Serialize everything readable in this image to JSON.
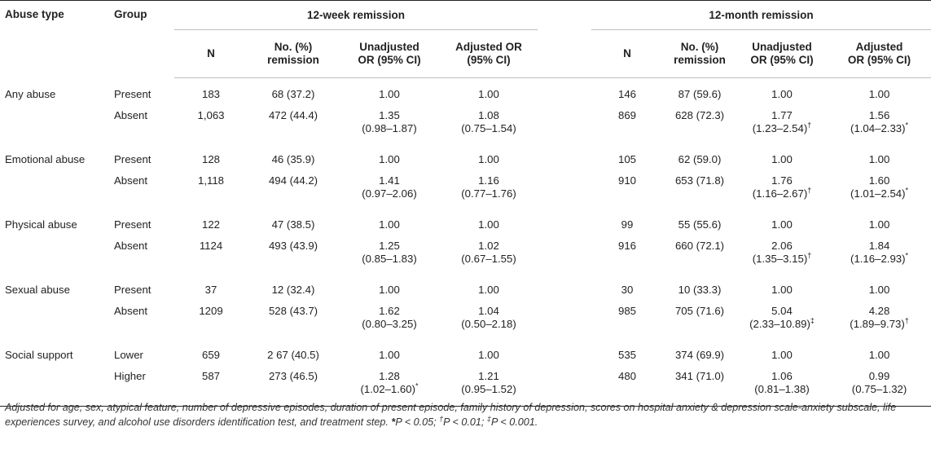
{
  "headers": {
    "abuse_type": "Abuse type",
    "group": "Group",
    "period1": "12-week remission",
    "period2": "12-month remission",
    "n": "N",
    "remission_l1": "No. (%)",
    "remission_l2": "remission",
    "unadj_l1": "Unadjusted",
    "unadj_l2": "OR (95% CI)",
    "adj_l1": "Adjusted OR",
    "adj_l2": "(95% CI)",
    "adj2_l1": "Adjusted",
    "adj2_l2": "OR (95% CI)"
  },
  "rows": [
    {
      "type": "Any abuse",
      "group": "Present",
      "n1": "183",
      "rem1": "68 (37.2)",
      "unadj1": "1.00",
      "unadj1_ci": "",
      "unadj1_sig": "",
      "adj1": "1.00",
      "adj1_ci": "",
      "adj1_sig": "",
      "n2": "146",
      "rem2": "87 (59.6)",
      "unadj2": "1.00",
      "unadj2_ci": "",
      "unadj2_sig": "",
      "adj2": "1.00",
      "adj2_ci": "",
      "adj2_sig": ""
    },
    {
      "type": "",
      "group": "Absent",
      "n1": "1,063",
      "rem1": "472 (44.4)",
      "unadj1": "1.35",
      "unadj1_ci": "(0.98–1.87)",
      "unadj1_sig": "",
      "adj1": "1.08",
      "adj1_ci": "(0.75–1.54)",
      "adj1_sig": "",
      "n2": "869",
      "rem2": "628 (72.3)",
      "unadj2": "1.77",
      "unadj2_ci": "(1.23–2.54)",
      "unadj2_sig": "†",
      "adj2": "1.56",
      "adj2_ci": "(1.04–2.33)",
      "adj2_sig": "*"
    },
    {
      "type": "Emotional abuse",
      "group": "Present",
      "n1": "128",
      "rem1": "46 (35.9)",
      "unadj1": "1.00",
      "unadj1_ci": "",
      "unadj1_sig": "",
      "adj1": "1.00",
      "adj1_ci": "",
      "adj1_sig": "",
      "n2": "105",
      "rem2": "62 (59.0)",
      "unadj2": "1.00",
      "unadj2_ci": "",
      "unadj2_sig": "",
      "adj2": "1.00",
      "adj2_ci": "",
      "adj2_sig": ""
    },
    {
      "type": "",
      "group": "Absent",
      "n1": "1,118",
      "rem1": "494 (44.2)",
      "unadj1": "1.41",
      "unadj1_ci": "(0.97–2.06)",
      "unadj1_sig": "",
      "adj1": "1.16",
      "adj1_ci": "(0.77–1.76)",
      "adj1_sig": "",
      "n2": "910",
      "rem2": "653 (71.8)",
      "unadj2": "1.76",
      "unadj2_ci": "(1.16–2.67)",
      "unadj2_sig": "†",
      "adj2": "1.60",
      "adj2_ci": "(1.01–2.54)",
      "adj2_sig": "*"
    },
    {
      "type": "Physical abuse",
      "group": "Present",
      "n1": "122",
      "rem1": "47 (38.5)",
      "unadj1": "1.00",
      "unadj1_ci": "",
      "unadj1_sig": "",
      "adj1": "1.00",
      "adj1_ci": "",
      "adj1_sig": "",
      "n2": "99",
      "rem2": "55 (55.6)",
      "unadj2": "1.00",
      "unadj2_ci": "",
      "unadj2_sig": "",
      "adj2": "1.00",
      "adj2_ci": "",
      "adj2_sig": ""
    },
    {
      "type": "",
      "group": "Absent",
      "n1": "1124",
      "rem1": "493 (43.9)",
      "unadj1": "1.25",
      "unadj1_ci": "(0.85–1.83)",
      "unadj1_sig": "",
      "adj1": "1.02",
      "adj1_ci": "(0.67–1.55)",
      "adj1_sig": "",
      "n2": "916",
      "rem2": "660 (72.1)",
      "unadj2": "2.06",
      "unadj2_ci": "(1.35–3.15)",
      "unadj2_sig": "†",
      "adj2": "1.84",
      "adj2_ci": "(1.16–2.93)",
      "adj2_sig": "*"
    },
    {
      "type": "Sexual abuse",
      "group": "Present",
      "n1": "37",
      "rem1": "12 (32.4)",
      "unadj1": "1.00",
      "unadj1_ci": "",
      "unadj1_sig": "",
      "adj1": "1.00",
      "adj1_ci": "",
      "adj1_sig": "",
      "n2": "30",
      "rem2": "10 (33.3)",
      "unadj2": "1.00",
      "unadj2_ci": "",
      "unadj2_sig": "",
      "adj2": "1.00",
      "adj2_ci": "",
      "adj2_sig": ""
    },
    {
      "type": "",
      "group": "Absent",
      "n1": "1209",
      "rem1": "528 (43.7)",
      "unadj1": "1.62",
      "unadj1_ci": "(0.80–3.25)",
      "unadj1_sig": "",
      "adj1": "1.04",
      "adj1_ci": "(0.50–2.18)",
      "adj1_sig": "",
      "n2": "985",
      "rem2": "705 (71.6)",
      "unadj2": "5.04",
      "unadj2_ci": "(2.33–10.89)",
      "unadj2_sig": "‡",
      "adj2": "4.28",
      "adj2_ci": "(1.89–9.73)",
      "adj2_sig": "†"
    },
    {
      "type": "Social support",
      "group": "Lower",
      "n1": "659",
      "rem1": "2 67 (40.5)",
      "unadj1": "1.00",
      "unadj1_ci": "",
      "unadj1_sig": "",
      "adj1": "1.00",
      "adj1_ci": "",
      "adj1_sig": "",
      "n2": "535",
      "rem2": "374 (69.9)",
      "unadj2": "1.00",
      "unadj2_ci": "",
      "unadj2_sig": "",
      "adj2": "1.00",
      "adj2_ci": "",
      "adj2_sig": ""
    },
    {
      "type": "",
      "group": "Higher",
      "n1": "587",
      "rem1": "273 (46.5)",
      "unadj1": "1.28",
      "unadj1_ci": "(1.02–1.60)",
      "unadj1_sig": "*",
      "adj1": "1.21",
      "adj1_ci": "(0.95–1.52)",
      "adj1_sig": "",
      "n2": "480",
      "rem2": "341 (71.0)",
      "unadj2": "1.06",
      "unadj2_ci": "(0.81–1.38)",
      "unadj2_sig": "",
      "adj2": "0.99",
      "adj2_ci": "(0.75–1.32)",
      "adj2_sig": ""
    }
  ],
  "footnote": {
    "main": "Adjusted for age, sex, atypical feature, number of depressive episodes, duration of present episode, family history of depression, scores on hospital anxiety & depression scale-anxiety subscale, life experiences survey, and alcohol use disorders identification test, and treatment step. ",
    "sig1_sym": "*",
    "sig1_text": "P < 0.05; ",
    "sig2_sym": "†",
    "sig2_text": "P < 0.01; ",
    "sig3_sym": "‡",
    "sig3_text": "P < 0.001."
  }
}
